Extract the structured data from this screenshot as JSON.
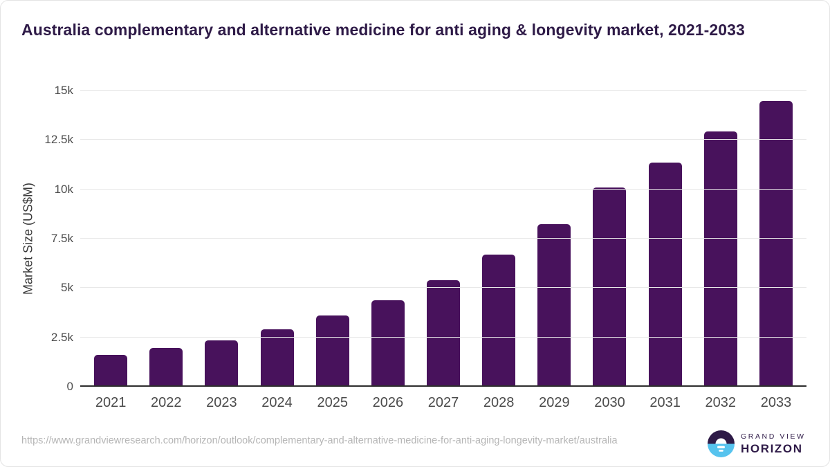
{
  "title": "Australia complementary and alternative medicine for anti aging & longevity market, 2021-2033",
  "chart_data": {
    "type": "bar",
    "title": "Australia complementary and alternative medicine for anti aging & longevity market, 2021-2033",
    "categories": [
      "2021",
      "2022",
      "2023",
      "2024",
      "2025",
      "2026",
      "2027",
      "2028",
      "2029",
      "2030",
      "2031",
      "2032",
      "2033"
    ],
    "values": [
      1600,
      1950,
      2360,
      2900,
      3600,
      4390,
      5410,
      6700,
      8220,
      10080,
      11340,
      12920,
      14480
    ],
    "xlabel": "",
    "ylabel": "Market Size (US$M)",
    "ylim": [
      0,
      15000
    ],
    "yticks": [
      {
        "value": 0,
        "label": "0"
      },
      {
        "value": 2500,
        "label": "2.5k"
      },
      {
        "value": 5000,
        "label": "5k"
      },
      {
        "value": 7500,
        "label": "7.5k"
      },
      {
        "value": 10000,
        "label": "10k"
      },
      {
        "value": 12500,
        "label": "12.5k"
      },
      {
        "value": 15000,
        "label": "15k"
      }
    ],
    "grid": true,
    "legend_position": "none",
    "bar_color": "#48125c"
  },
  "colors": {
    "title_text": "#2e1a47",
    "bar": "#48125c",
    "gridline": "#e8e8e8",
    "axis_line": "#2d2d2d",
    "tick_text": "#4d4d4d",
    "url_text": "#b5b5b5",
    "logo_purple": "#2e1a47",
    "logo_blue": "#56c3ee"
  },
  "footer": {
    "source_url": "https://www.grandviewresearch.com/horizon/outlook/complementary-and-alternative-medicine-for-anti-aging-longevity-market/australia",
    "brand_line1": "GRAND VIEW",
    "brand_line2": "HORIZON"
  }
}
